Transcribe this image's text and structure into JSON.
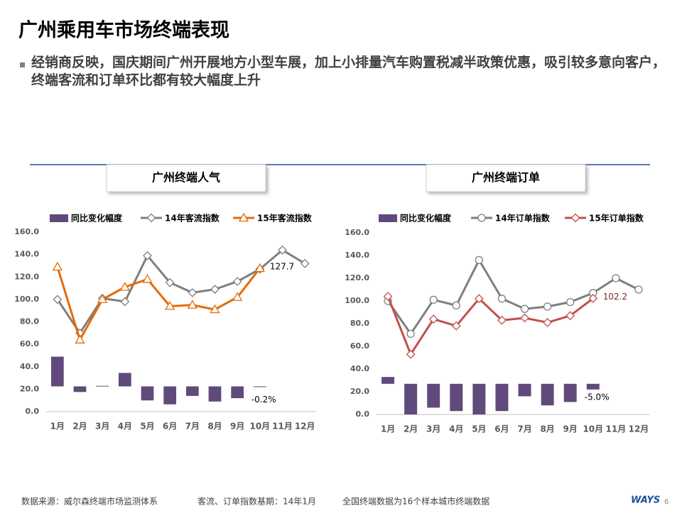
{
  "title": "广州乘用车市场终端表现",
  "bullet": "经销商反映，国庆期间广州开展地方小型车展，加上小排量汽车购置税减半政策优惠，吸引较多意向客户，终端客流和订单环比都有较大幅度上升",
  "footer": {
    "source": "数据来源：威尔森终端市场监测体系",
    "base": "客流、订单指数基期：14年1月",
    "note": "全国终端数据为16个样本城市终端数据",
    "logo": "WAYS",
    "page": "6"
  },
  "chart_data": [
    {
      "type": "bar-line",
      "title": "广州终端人气",
      "categories": [
        "1月",
        "2月",
        "3月",
        "4月",
        "5月",
        "6月",
        "7月",
        "8月",
        "9月",
        "10月",
        "11月",
        "12月"
      ],
      "ylim": [
        0,
        160
      ],
      "yticks": [
        {
          "value": 0,
          "label": "0.0"
        },
        {
          "value": 20,
          "label": "20.0"
        },
        {
          "value": 40,
          "label": "40.0"
        },
        {
          "value": 60,
          "label": "60.0"
        },
        {
          "value": 80,
          "label": "80.0"
        },
        {
          "value": 100,
          "label": "100.0"
        },
        {
          "value": 120,
          "label": "120.0"
        },
        {
          "value": 140,
          "label": "140.0"
        },
        {
          "value": 160,
          "label": "160.0"
        }
      ],
      "y2lim": [
        -22.5,
        137.5
      ],
      "series": [
        {
          "name": "同比变化幅度",
          "kind": "bar",
          "axis": "y2",
          "color": "#604a7b",
          "values": [
            26.5,
            -5,
            0.5,
            12,
            -12.5,
            -16,
            -8.5,
            -13.5,
            -10.5,
            -0.2,
            null,
            null
          ],
          "value_labels": [
            null,
            null,
            null,
            null,
            null,
            null,
            null,
            null,
            null,
            "-0.2%",
            null,
            null
          ]
        },
        {
          "name": "14年客流指数",
          "kind": "line",
          "marker": "diamond",
          "color": "#7f7f7f",
          "values": [
            100,
            70,
            101,
            98,
            139,
            115,
            106,
            109,
            116,
            127,
            144,
            132
          ]
        },
        {
          "name": "15年客流指数",
          "kind": "line",
          "marker": "triangle",
          "color": "#e46c0a",
          "values": [
            129,
            64,
            100,
            111,
            118,
            94,
            95,
            91,
            102,
            127.7,
            null,
            null
          ],
          "labeled": [
            9
          ]
        }
      ]
    },
    {
      "type": "bar-line",
      "title": "广州终端订单",
      "categories": [
        "1月",
        "2月",
        "3月",
        "4月",
        "5月",
        "6月",
        "7月",
        "8月",
        "9月",
        "10月",
        "11月",
        "12月"
      ],
      "ylim": [
        0,
        160
      ],
      "yticks": [
        {
          "value": 0,
          "label": "0.0"
        },
        {
          "value": 20,
          "label": "20.0"
        },
        {
          "value": 40,
          "label": "40.0"
        },
        {
          "value": 60,
          "label": "60.0"
        },
        {
          "value": 80,
          "label": "80.0"
        },
        {
          "value": 100,
          "label": "100.0"
        },
        {
          "value": 120,
          "label": "120.0"
        },
        {
          "value": 140,
          "label": "140.0"
        },
        {
          "value": 160,
          "label": "160.0"
        }
      ],
      "y2lim": [
        -27,
        133
      ],
      "series": [
        {
          "name": "同比变化幅度",
          "kind": "bar",
          "axis": "y2",
          "color": "#604a7b",
          "values": [
            6,
            -27,
            -21,
            -24,
            -27,
            -24,
            -11,
            -19,
            -16,
            -5,
            null,
            null
          ],
          "value_labels": [
            null,
            null,
            null,
            null,
            null,
            null,
            null,
            null,
            null,
            "-5.0%",
            null,
            null
          ]
        },
        {
          "name": "14年订单指数",
          "kind": "line",
          "marker": "circle",
          "color": "#7f7f7f",
          "values": [
            100,
            71,
            101,
            96,
            136,
            102,
            93,
            95,
            99,
            107,
            120,
            110
          ]
        },
        {
          "name": "15年订单指数",
          "kind": "line",
          "marker": "diamond",
          "color": "#c0504d",
          "values": [
            104,
            53,
            84,
            78,
            102,
            83,
            85,
            81,
            87,
            102.2,
            null,
            null
          ],
          "labeled": [
            9
          ]
        }
      ]
    }
  ]
}
